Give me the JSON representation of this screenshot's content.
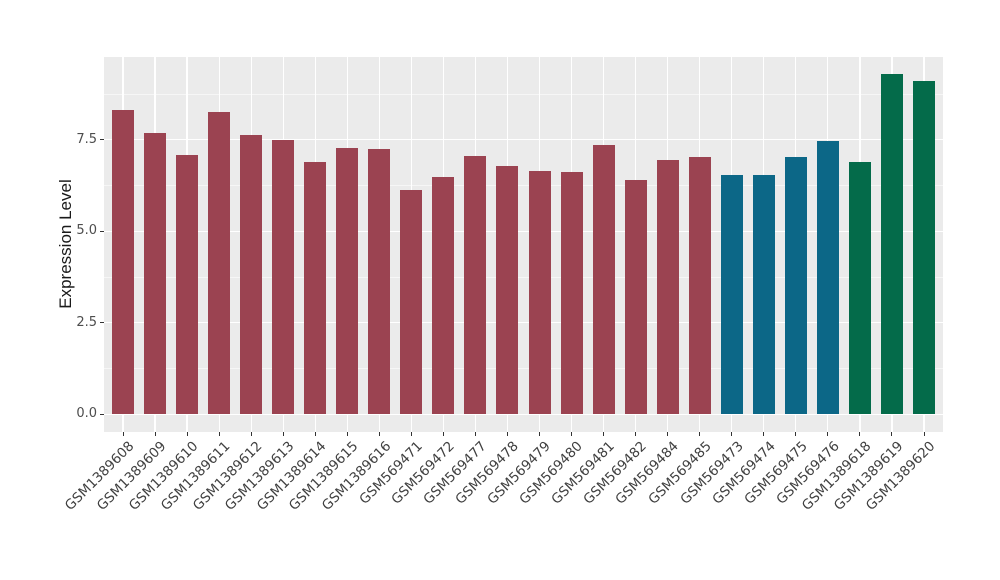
{
  "chart_data": {
    "type": "bar",
    "title": "",
    "xlabel": "",
    "ylabel": "Expression Level",
    "ylim": [
      0,
      9.74
    ],
    "yticks": [
      0,
      2.5,
      5,
      7.5
    ],
    "ytick_labels": [
      "0.0",
      "2.5",
      "5.0",
      "7.5"
    ],
    "minor_gridlines": [
      1.25,
      3.75,
      6.25,
      8.75
    ],
    "grid": "major and minor horizontal white gridlines, vertical white gridline at each category",
    "legend": "none",
    "categories": [
      "GSM1389608",
      "GSM1389609",
      "GSM1389610",
      "GSM1389611",
      "GSM1389612",
      "GSM1389613",
      "GSM1389614",
      "GSM1389615",
      "GSM1389616",
      "GSM569471",
      "GSM569472",
      "GSM569477",
      "GSM569478",
      "GSM569479",
      "GSM569480",
      "GSM569481",
      "GSM569482",
      "GSM569484",
      "GSM569485",
      "GSM569473",
      "GSM569474",
      "GSM569475",
      "GSM569476",
      "GSM1389618",
      "GSM1389619",
      "GSM1389620"
    ],
    "values": [
      8.3,
      7.69,
      7.08,
      8.26,
      7.62,
      7.5,
      6.89,
      7.26,
      7.23,
      6.11,
      6.48,
      7.06,
      6.78,
      6.64,
      6.62,
      7.34,
      6.39,
      6.94,
      7.03,
      6.54,
      6.54,
      7.03,
      7.46,
      6.88,
      9.29,
      9.09
    ],
    "groups": [
      "maroon",
      "maroon",
      "maroon",
      "maroon",
      "maroon",
      "maroon",
      "maroon",
      "maroon",
      "maroon",
      "maroon",
      "maroon",
      "maroon",
      "maroon",
      "maroon",
      "maroon",
      "maroon",
      "maroon",
      "maroon",
      "maroon",
      "teal",
      "teal",
      "teal",
      "teal",
      "green",
      "green",
      "green"
    ],
    "group_colors": {
      "maroon": "#9B4351",
      "teal": "#0C6787",
      "green": "#046B4A"
    },
    "panel_bg": "#EBEBEB",
    "gridline_color": "#FFFFFF",
    "axis_text_color": "#4D4D4D",
    "axis_title_color": "#1A1A1A",
    "tick_mark_color": "#333333"
  }
}
